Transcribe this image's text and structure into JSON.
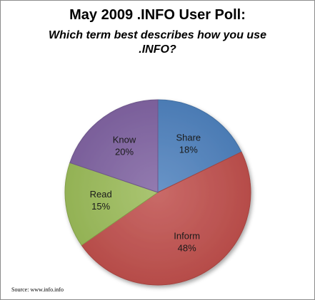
{
  "chart_data": {
    "type": "pie",
    "title": "May 2009 .INFO User Poll:",
    "subtitle": "Which term best describes how you use .INFO?",
    "slices": [
      {
        "label": "Share",
        "value": 18,
        "value_label": "18%",
        "color": "#4f81bd"
      },
      {
        "label": "Inform",
        "value": 48,
        "value_label": "48%",
        "color": "#c0504d"
      },
      {
        "label": "Read",
        "value": 15,
        "value_label": "15%",
        "color": "#9bbb59"
      },
      {
        "label": "Know",
        "value": 20,
        "value_label": "20%",
        "color": "#8064a2"
      }
    ],
    "start_angle": "12 o'clock, clockwise",
    "legend": "none, labels inside slices"
  },
  "source": "Source: www.info.info"
}
